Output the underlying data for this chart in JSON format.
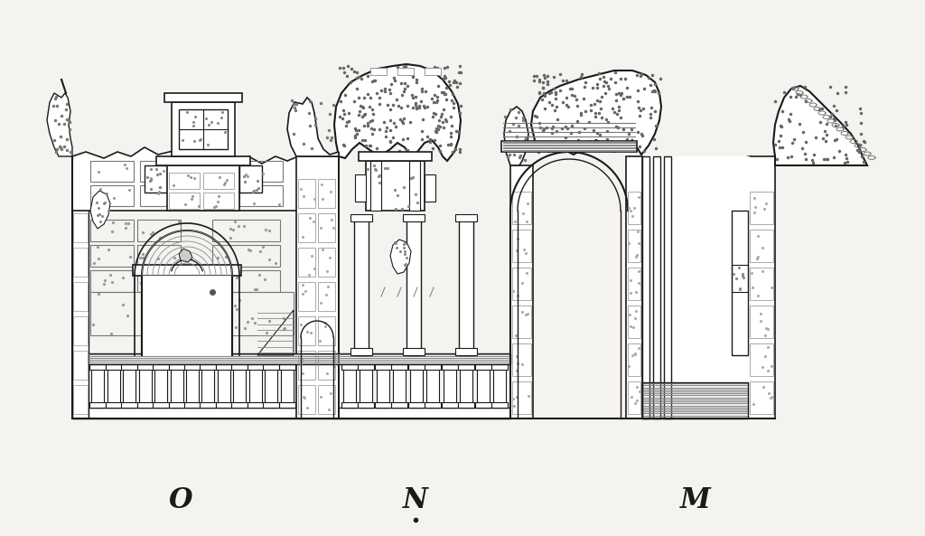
{
  "labels": [
    "O",
    "N",
    "M"
  ],
  "bg_color": "#f5f3f0",
  "line_color": "#1a1a1a",
  "figsize": [
    10.24,
    5.93
  ],
  "dpi": 100,
  "xlim": [
    0,
    1024
  ],
  "ylim": [
    -70,
    523
  ]
}
